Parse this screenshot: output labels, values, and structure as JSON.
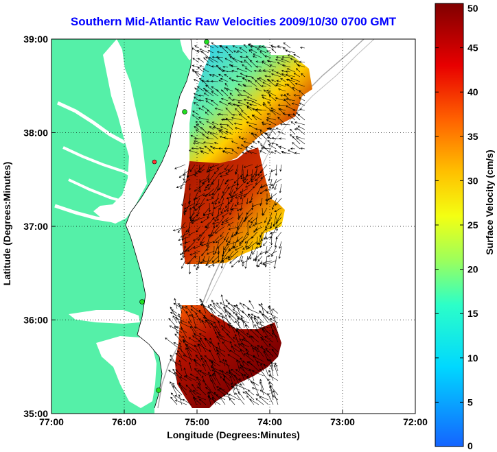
{
  "title": "Southern Mid-Atlantic Raw Velocities 2009/10/30 0700 GMT",
  "xlabel": "Longitude (Degrees:Minutes)",
  "ylabel": "Latitude (Degrees:Minutes)",
  "colorbar": {
    "label": "Surface Velocity (cm/s)",
    "ticks": [
      "0",
      "5",
      "10",
      "15",
      "20",
      "25",
      "30",
      "35",
      "40",
      "45",
      "50"
    ],
    "range": [
      0,
      50
    ]
  },
  "map": {
    "x_ticks": [
      "77:00",
      "76:00",
      "75:00",
      "74:00",
      "73:00",
      "72:00"
    ],
    "y_ticks": [
      "39:00",
      "38:00",
      "37:00",
      "36:00",
      "35:00"
    ],
    "lon_range": [
      -77,
      -72
    ],
    "lat_range": [
      35,
      39
    ],
    "land_color": "#55f0a8",
    "station_color": "#22dd22",
    "station_color_alt": "#ff3333"
  }
}
